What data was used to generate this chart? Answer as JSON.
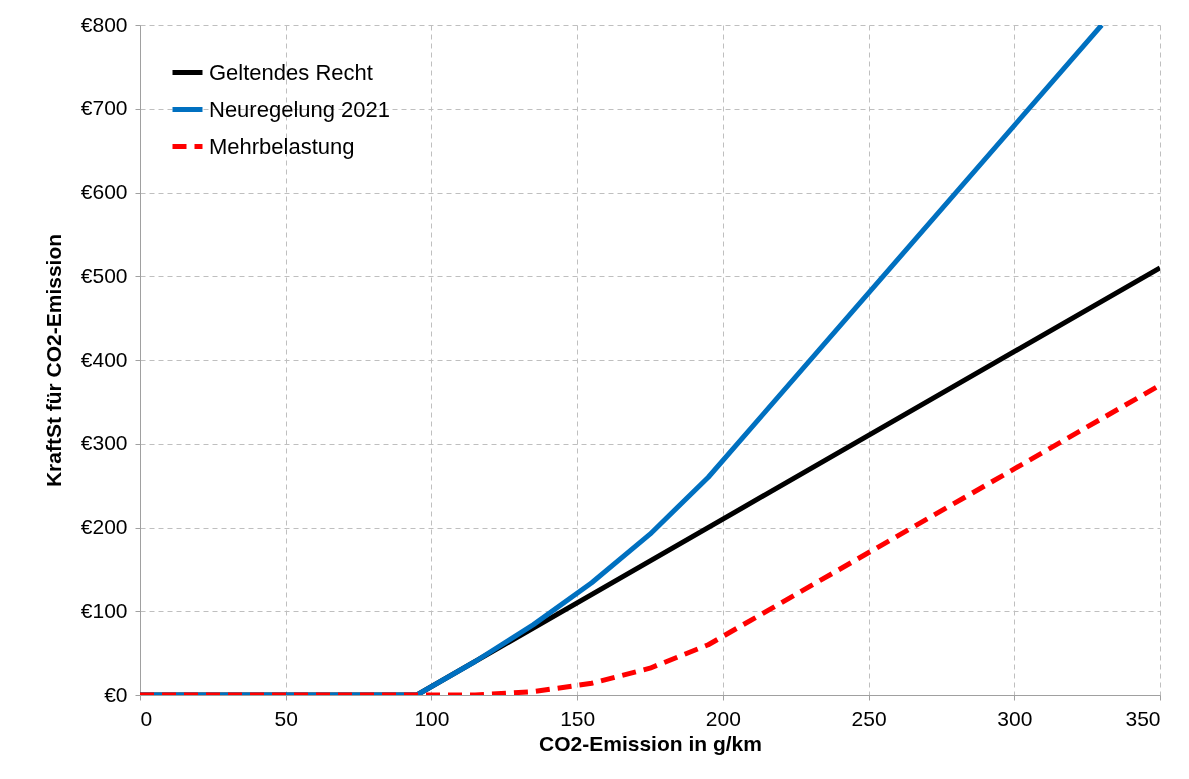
{
  "chart_data": {
    "type": "line",
    "xlabel": "CO2-Emission in g/km",
    "ylabel": "KraftSt für CO2-Emission",
    "xlim": [
      0,
      350
    ],
    "xticks": [
      0,
      50,
      100,
      150,
      200,
      250,
      300,
      350
    ],
    "ylim": [
      0,
      800
    ],
    "yticks": [
      {
        "value": 0,
        "label": "€0"
      },
      {
        "value": 100,
        "label": "€100"
      },
      {
        "value": 200,
        "label": "€200"
      },
      {
        "value": 300,
        "label": "€300"
      },
      {
        "value": 400,
        "label": "€400"
      },
      {
        "value": 500,
        "label": "€500"
      },
      {
        "value": 600,
        "label": "€600"
      },
      {
        "value": 700,
        "label": "€700"
      },
      {
        "value": 800,
        "label": "€800"
      }
    ],
    "grid": true,
    "legend": "top left",
    "series": [
      {
        "name": "Geltendes Recht",
        "color": "#000000",
        "line_style": "solid",
        "x": [
          0,
          95,
          350
        ],
        "values": [
          0,
          0,
          510
        ]
      },
      {
        "name": "Neuregelung 2021",
        "color": "#0070c0",
        "line_style": "solid",
        "x": [
          0,
          95,
          115,
          135,
          155,
          175,
          195,
          330
        ],
        "values": [
          0,
          0,
          40,
          84,
          134,
          192,
          260,
          800
        ]
      },
      {
        "name": "Mehrbelastung",
        "color": "#ff0000",
        "line_style": "dashed",
        "x": [
          0,
          95,
          115,
          135,
          155,
          175,
          195,
          350
        ],
        "values": [
          0,
          0,
          0,
          4,
          14,
          32,
          60,
          370
        ]
      }
    ]
  }
}
